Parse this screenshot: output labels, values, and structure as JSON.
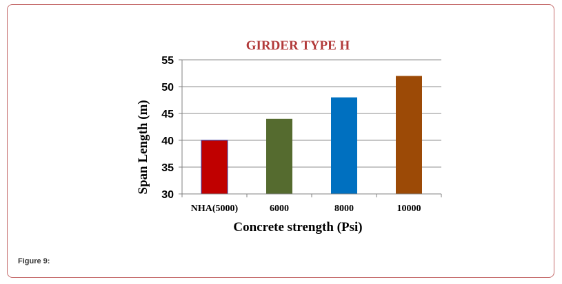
{
  "figure_caption": "Figure 9:",
  "chart_data": {
    "type": "bar",
    "title": "GIRDER TYPE H",
    "xlabel": "Concrete strength (Psi)",
    "ylabel": "Span Length (m)",
    "categories": [
      "NHA(5000)",
      "6000",
      "8000",
      "10000"
    ],
    "values": [
      40,
      44,
      48,
      52
    ],
    "ylim": [
      30,
      55
    ],
    "yticks": [
      30,
      35,
      40,
      45,
      50,
      55
    ],
    "grid": true,
    "bar_colors": [
      "#c00000",
      "#556b2f",
      "#0070c0",
      "#9c4a06"
    ],
    "title_color": "#b23a3a"
  }
}
